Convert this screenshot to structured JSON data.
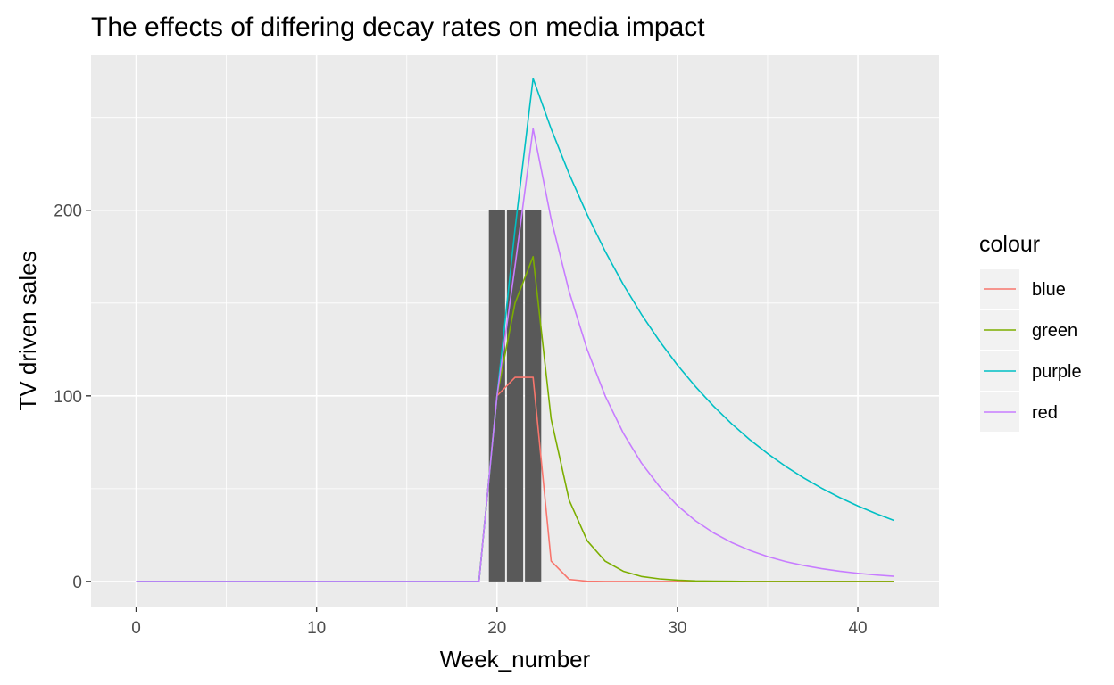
{
  "chart_data": {
    "type": "line",
    "title": "The effects of differing decay rates on media impact",
    "xlabel": "Week_number",
    "ylabel": "TV driven sales",
    "xlim": [
      -2.5,
      44.5
    ],
    "ylim": [
      -13.5,
      283.5
    ],
    "x_ticks": [
      0,
      10,
      20,
      30,
      40
    ],
    "y_ticks": [
      0,
      100,
      200
    ],
    "x_tick_labels": [
      "0",
      "10",
      "20",
      "30",
      "40"
    ],
    "y_tick_labels": [
      "0",
      "100",
      "200"
    ],
    "grid": true,
    "background": "#ebebeb",
    "bars": {
      "name": "",
      "color": "#595959",
      "x": [
        20,
        21,
        22
      ],
      "values": [
        200,
        200,
        200
      ]
    },
    "legend": {
      "title": "colour",
      "placement": "right",
      "entries": [
        "blue",
        "green",
        "purple",
        "red"
      ]
    },
    "series": [
      {
        "name": "blue",
        "color": "#f8766d",
        "x": [
          0,
          19,
          20,
          21,
          22,
          23,
          24,
          25,
          26,
          27,
          28,
          29,
          30,
          31,
          32,
          33,
          34,
          35,
          36,
          37,
          38,
          39,
          40,
          41,
          42
        ],
        "values": [
          0,
          0,
          100,
          110,
          110,
          11,
          1.1,
          0.1,
          0,
          0,
          0,
          0,
          0,
          0,
          0,
          0,
          0,
          0,
          0,
          0,
          0,
          0,
          0,
          0,
          0
        ]
      },
      {
        "name": "green",
        "color": "#7cae00",
        "x": [
          0,
          19,
          20,
          21,
          22,
          23,
          24,
          25,
          26,
          27,
          28,
          29,
          30,
          31,
          32,
          33,
          34,
          35,
          36,
          37,
          38,
          39,
          40,
          41,
          42
        ],
        "values": [
          0,
          0,
          100,
          150,
          175,
          87.5,
          43.8,
          21.9,
          10.9,
          5.5,
          2.7,
          1.4,
          0.7,
          0.3,
          0.2,
          0.1,
          0,
          0,
          0,
          0,
          0,
          0,
          0,
          0,
          0
        ]
      },
      {
        "name": "purple",
        "color": "#00bfc4",
        "x": [
          0,
          19,
          20,
          21,
          22,
          23,
          24,
          25,
          26,
          27,
          28,
          29,
          30,
          31,
          32,
          33,
          34,
          35,
          36,
          37,
          38,
          39,
          40,
          41,
          42
        ],
        "values": [
          0,
          0,
          100,
          190,
          271,
          243.9,
          219.5,
          197.6,
          177.8,
          160,
          144,
          129.6,
          116.6,
          105,
          94.5,
          85,
          76.5,
          68.9,
          62,
          55.8,
          50.2,
          45.2,
          40.7,
          36.6,
          32.9
        ]
      },
      {
        "name": "red",
        "color": "#c77cff",
        "x": [
          0,
          19,
          20,
          21,
          22,
          23,
          24,
          25,
          26,
          27,
          28,
          29,
          30,
          31,
          32,
          33,
          34,
          35,
          36,
          37,
          38,
          39,
          40,
          41,
          42
        ],
        "values": [
          0,
          0,
          100,
          170,
          244,
          195.2,
          156.2,
          124.9,
          99.9,
          79.9,
          63.9,
          51.2,
          40.9,
          32.7,
          26.2,
          21,
          16.8,
          13.4,
          10.7,
          8.6,
          6.9,
          5.5,
          4.4,
          3.5,
          2.8
        ]
      }
    ]
  }
}
